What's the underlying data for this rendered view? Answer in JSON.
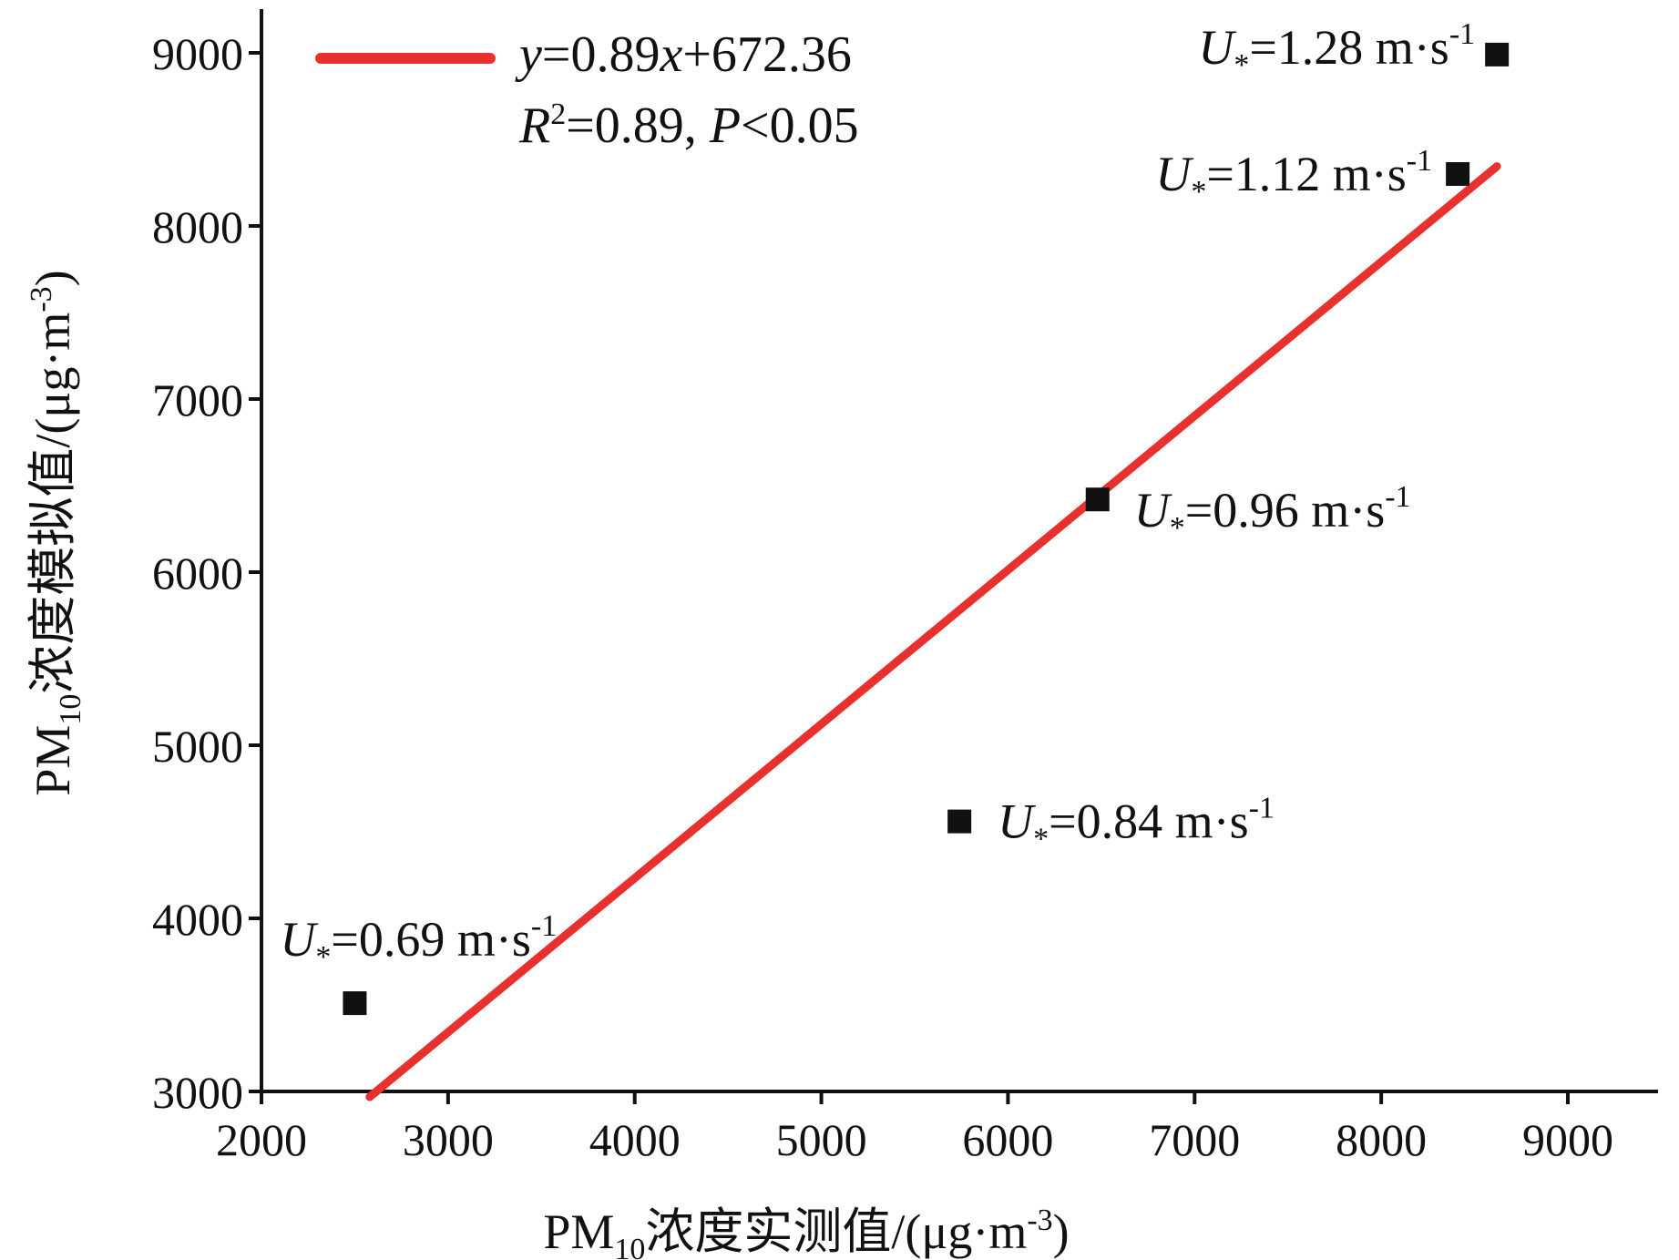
{
  "chart_data": {
    "type": "scatter",
    "xlabel": "PM10浓度实测值/(μg·m-3)",
    "ylabel": "PM10浓度模拟值/(μg·m-3)",
    "xlabel_parts": {
      "pre": "PM",
      "sub": "10",
      "mid": "浓度实测值/(μg·m",
      "sup": "-3",
      "post": ")"
    },
    "ylabel_parts": {
      "pre": "PM",
      "sub": "10",
      "mid": "浓度模拟值/(μg·m",
      "sup": "-3",
      "post": ")"
    },
    "xlim": [
      2000,
      9500
    ],
    "ylim": [
      3000,
      9200
    ],
    "x_ticks": [
      2000,
      3000,
      4000,
      5000,
      6000,
      7000,
      8000,
      9000
    ],
    "y_ticks": [
      3000,
      4000,
      5000,
      6000,
      7000,
      8000,
      9000
    ],
    "grid": false,
    "points": [
      {
        "x": 2500,
        "y": 3510,
        "label": "U*=0.69 m·s-1",
        "u": "0.69"
      },
      {
        "x": 5740,
        "y": 4560,
        "label": "U*=0.84 m·s-1",
        "u": "0.84"
      },
      {
        "x": 6480,
        "y": 6420,
        "label": "U*=0.96 m·s-1",
        "u": "0.96"
      },
      {
        "x": 8410,
        "y": 8300,
        "label": "U*=1.12 m·s-1",
        "u": "1.12"
      },
      {
        "x": 8620,
        "y": 8990,
        "label": "U*=1.28 m·s-1",
        "u": "1.28"
      }
    ],
    "fit_line": {
      "slope": 0.89,
      "intercept": 672.36,
      "x_range": [
        2580,
        8620
      ],
      "color": "#e8302e"
    },
    "legend": {
      "equation": "y=0.89x+672.36",
      "eq_parts": {
        "y": "y",
        "a": "=0.89",
        "x": "x",
        "b": "+672.36"
      },
      "stats": "R2=0.89, P<0.05",
      "stats_parts": {
        "r": "R",
        "sup": "2",
        "r2": "=0.89, ",
        "p": "P",
        "pv": "<0.05"
      },
      "placement": "top-left"
    },
    "marker_color": "#111111",
    "axis_color": "#111111"
  }
}
